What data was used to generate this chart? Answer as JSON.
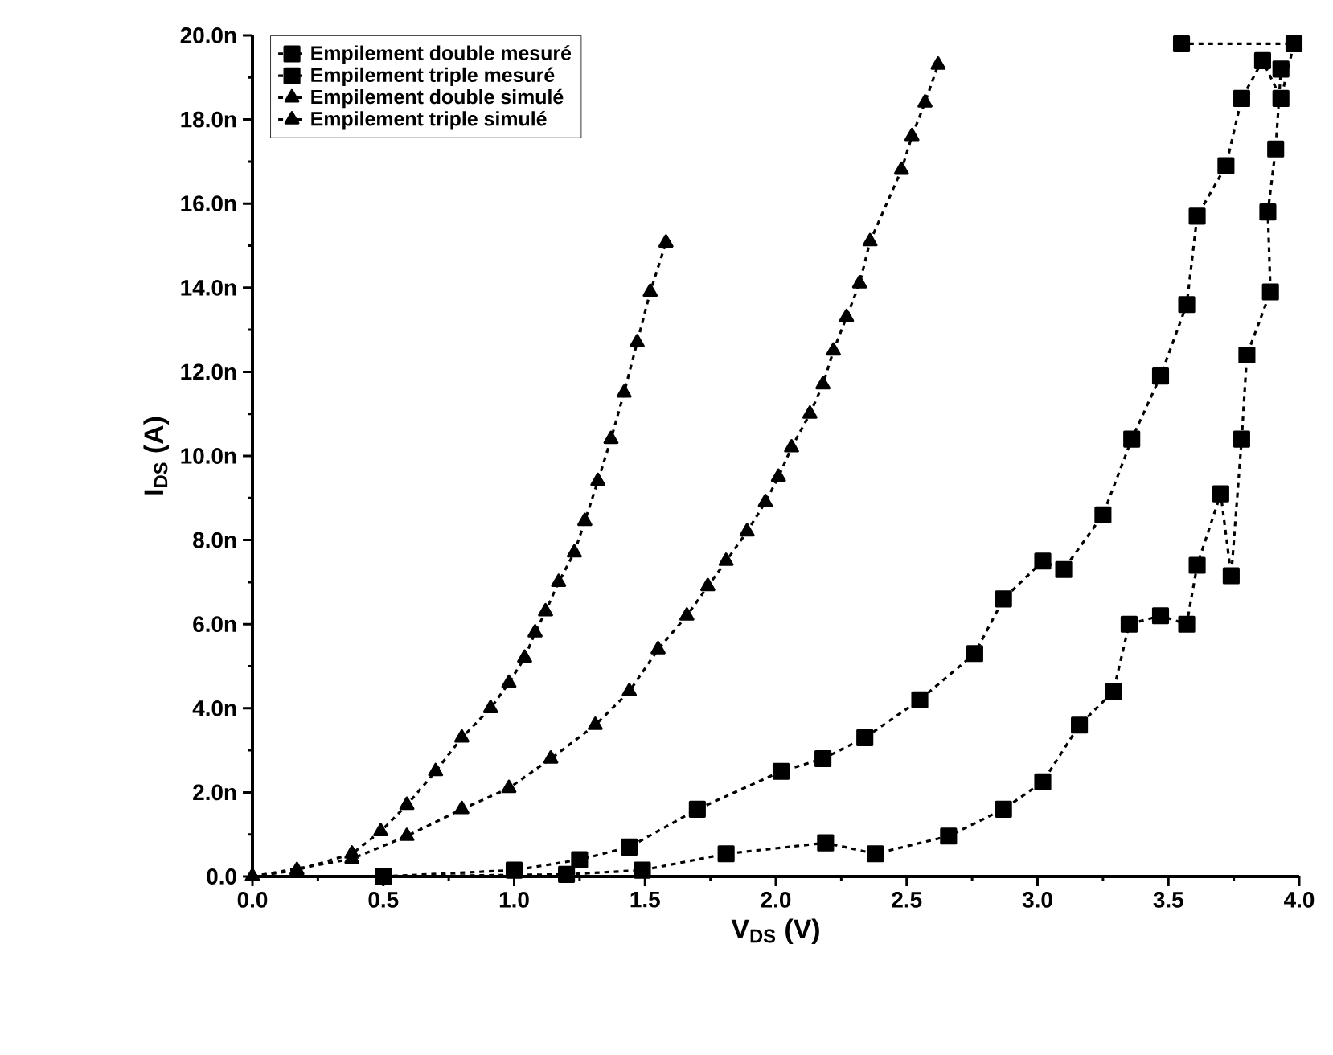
{
  "chart_data": {
    "type": "line",
    "xlabel": "V$_{DS}$ (V)",
    "ylabel": "I$_{DS}$ (A)",
    "xlim": [
      0,
      4
    ],
    "ylim": [
      0,
      20
    ],
    "xticks": [
      {
        "value": 0,
        "label": "0.0"
      },
      {
        "value": 0.5,
        "label": "0.5"
      },
      {
        "value": 1,
        "label": "1.0"
      },
      {
        "value": 1.5,
        "label": "1.5"
      },
      {
        "value": 2,
        "label": "2.0"
      },
      {
        "value": 2.5,
        "label": "2.5"
      },
      {
        "value": 3,
        "label": "3.0"
      },
      {
        "value": 3.5,
        "label": "3.5"
      },
      {
        "value": 4,
        "label": "4.0"
      }
    ],
    "yticks": [
      {
        "value": 0,
        "label": "0.0"
      },
      {
        "value": 2,
        "label": "2.0n"
      },
      {
        "value": 4,
        "label": "4.0n"
      },
      {
        "value": 6,
        "label": "6.0n"
      },
      {
        "value": 8,
        "label": "8.0n"
      },
      {
        "value": 10,
        "label": "10.0n"
      },
      {
        "value": 12,
        "label": "12.0n"
      },
      {
        "value": 14,
        "label": "14.0n"
      },
      {
        "value": 16,
        "label": "16.0n"
      },
      {
        "value": 18,
        "label": "18.0n"
      },
      {
        "value": 20,
        "label": "20.0n"
      }
    ],
    "legend": "top left",
    "grid": false,
    "series": [
      {
        "name": "Empilement double mesuré",
        "color": "#000000",
        "marker": "square",
        "line_style": "dashed",
        "x": [
          0.5,
          1.0,
          1.25,
          1.44,
          1.7,
          2.02,
          2.18,
          2.34,
          2.55,
          2.76,
          2.87,
          3.02,
          3.1,
          3.25,
          3.36,
          3.47,
          3.57,
          3.61,
          3.72,
          3.78,
          3.86,
          3.93,
          3.98,
          3.55
        ],
        "values": [
          0.0,
          0.15,
          0.4,
          0.7,
          1.6,
          2.5,
          2.8,
          3.3,
          4.2,
          5.3,
          6.6,
          7.5,
          7.3,
          8.6,
          10.4,
          11.9,
          13.6,
          15.7,
          16.9,
          18.5,
          19.4,
          18.5,
          19.8,
          19.8
        ]
      },
      {
        "name": "Empilement triple mesuré",
        "color": "#000000",
        "marker": "square",
        "line_style": "dashed",
        "x": [
          0.5,
          1.2,
          1.49,
          1.81,
          2.19,
          2.38,
          2.66,
          2.87,
          3.02,
          3.16,
          3.29,
          3.35,
          3.47,
          3.57,
          3.61,
          3.7,
          3.74,
          3.78,
          3.8,
          3.89,
          3.88,
          3.91,
          3.93
        ],
        "values": [
          0.0,
          0.05,
          0.15,
          0.54,
          0.8,
          0.54,
          0.96,
          1.6,
          2.25,
          3.6,
          4.4,
          6.0,
          6.2,
          6.0,
          7.4,
          9.1,
          7.15,
          10.4,
          12.4,
          13.9,
          15.8,
          17.3,
          19.2
        ]
      },
      {
        "name": "Empilement double simulé",
        "color": "#000000",
        "marker": "triangle",
        "line_style": "dashed",
        "x": [
          0.0,
          0.38,
          0.59,
          0.8,
          0.98,
          1.14,
          1.31,
          1.44,
          1.55,
          1.66,
          1.74,
          1.81,
          1.89,
          1.96,
          2.01,
          2.06,
          2.13,
          2.18,
          2.22,
          2.27,
          2.32,
          2.36,
          2.48,
          2.52,
          2.57,
          2.62
        ],
        "values": [
          0.0,
          0.42,
          0.96,
          1.6,
          2.1,
          2.8,
          3.6,
          4.4,
          5.4,
          6.2,
          6.9,
          7.5,
          8.2,
          8.9,
          9.5,
          10.2,
          11.0,
          11.7,
          12.5,
          13.3,
          14.1,
          15.1,
          16.8,
          17.6,
          18.4,
          19.3
        ]
      },
      {
        "name": "Empilement triple simulé",
        "color": "#000000",
        "marker": "triangle",
        "line_style": "dashed",
        "x": [
          0.0,
          0.17,
          0.38,
          0.49,
          0.59,
          0.7,
          0.8,
          0.91,
          0.98,
          1.04,
          1.08,
          1.12,
          1.17,
          1.23,
          1.27,
          1.32,
          1.37,
          1.42,
          1.47,
          1.52,
          1.58
        ],
        "values": [
          0.0,
          0.15,
          0.54,
          1.07,
          1.7,
          2.5,
          3.3,
          4.0,
          4.6,
          5.2,
          5.8,
          6.3,
          7.0,
          7.7,
          8.45,
          9.4,
          10.4,
          11.5,
          12.7,
          13.9,
          15.07
        ]
      }
    ]
  }
}
